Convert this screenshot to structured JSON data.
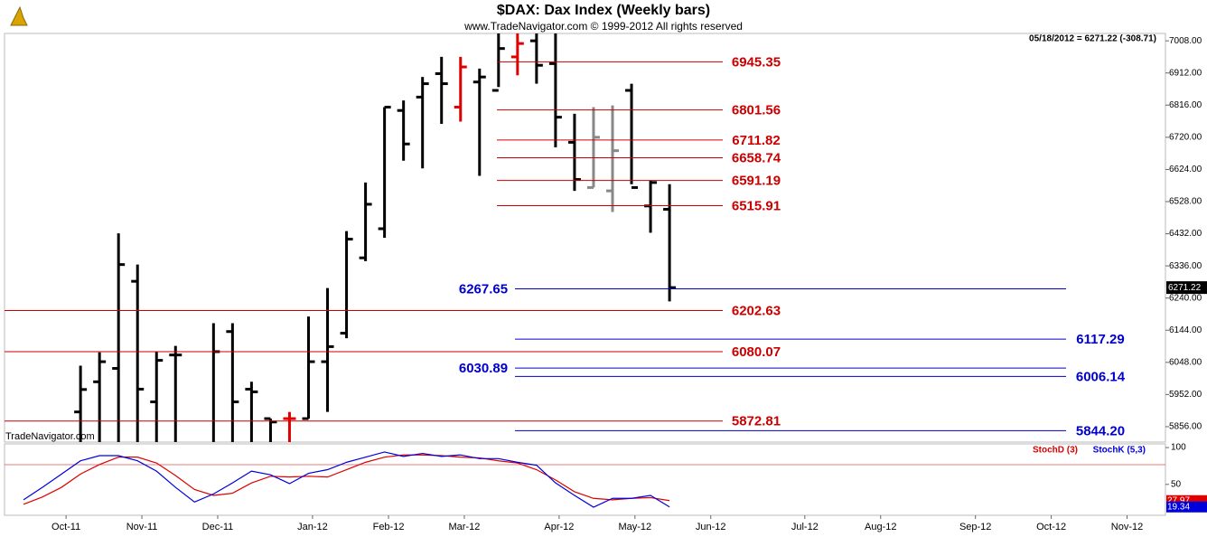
{
  "chart_data": {
    "type": "ohlc",
    "title": "$DAX:  Dax Index  (Weekly bars)",
    "subtitle": "www.TradeNavigator.com © 1999-2012 All rights reserved",
    "info": "05/18/2012 = 6271.22 (-308.71)",
    "watermark": "TradeNavigator.com",
    "x": [
      0,
      1,
      2,
      3,
      4,
      5,
      7,
      8,
      9,
      10,
      11,
      12,
      13,
      14,
      15,
      16,
      17,
      18,
      19,
      20,
      21,
      22,
      23,
      24,
      25,
      26,
      27,
      28,
      29,
      30,
      31
    ],
    "open": [
      5900,
      5990,
      6030,
      6290,
      5930,
      6070,
      5760,
      6140,
      5968,
      5880,
      5880,
      5880,
      6050,
      6135,
      6360,
      6447,
      6800,
      6840,
      6910,
      6810,
      6885,
      6860,
      6960,
      7008,
      6940,
      6705,
      6570,
      6560,
      6860,
      6515,
      6505
    ],
    "high": [
      6038,
      6078,
      6433,
      6340,
      6080,
      6097,
      6165,
      6165,
      5990,
      5880,
      5900,
      6185,
      6270,
      6440,
      6585,
      6810,
      6830,
      6900,
      6960,
      6960,
      6925,
      7040,
      7040,
      7040,
      7040,
      6790,
      6810,
      6815,
      6880,
      6590,
      6580
    ],
    "low": [
      5760,
      5760,
      5760,
      5760,
      5760,
      5760,
      5760,
      5760,
      5760,
      5760,
      5760,
      5880,
      5900,
      6120,
      6350,
      6420,
      6650,
      6627,
      6760,
      6767,
      6605,
      6870,
      6905,
      6880,
      6690,
      6560,
      6570,
      6497,
      6580,
      6435,
      6230
    ],
    "close": [
      5967,
      6050,
      6340,
      5968,
      6054,
      6070,
      6080,
      5930,
      5960,
      5870,
      5880,
      6050,
      6095,
      6416,
      6520,
      6810,
      6700,
      6880,
      6880,
      6930,
      6900,
      6985,
      7000,
      6935,
      6780,
      6594,
      6720,
      6680,
      6570,
      6585,
      6271.22
    ],
    "bar_colors": [
      "#000",
      "#000",
      "#000",
      "#000",
      "#000",
      "#000",
      "#000",
      "#000",
      "#000",
      "#000",
      "#e00000",
      "#000",
      "#000",
      "#000",
      "#000",
      "#000",
      "#000",
      "#000",
      "#000",
      "#e00000",
      "#000",
      "#000",
      "#e00000",
      "#000",
      "#000",
      "#000",
      "#888888",
      "#888888",
      "#000",
      "#000",
      "#000"
    ],
    "xlim": [
      -4,
      57.1
    ],
    "xticks": [
      {
        "value": -0.76,
        "label": "Oct-11"
      },
      {
        "value": 3.23,
        "label": "Nov-11"
      },
      {
        "value": 7.22,
        "label": "Dec-11"
      },
      {
        "value": 12.21,
        "label": "Jan-12"
      },
      {
        "value": 16.21,
        "label": "Feb-12"
      },
      {
        "value": 20.2,
        "label": "Mar-12"
      },
      {
        "value": 25.19,
        "label": "Apr-12"
      },
      {
        "value": 29.18,
        "label": "May-12"
      },
      {
        "value": 33.17,
        "label": "Jun-12"
      },
      {
        "value": 38.12,
        "label": "Jul-12"
      },
      {
        "value": 42.11,
        "label": "Aug-12"
      },
      {
        "value": 47.1,
        "label": "Sep-12"
      },
      {
        "value": 51.09,
        "label": "Oct-12"
      },
      {
        "value": 55.08,
        "label": "Nov-12"
      }
    ],
    "ylim": [
      5810,
      7030
    ],
    "yticks": [
      {
        "value": 7008,
        "label": "7008.00"
      },
      {
        "value": 6912,
        "label": "6912.00"
      },
      {
        "value": 6816,
        "label": "6816.00"
      },
      {
        "value": 6720,
        "label": "6720.00"
      },
      {
        "value": 6624,
        "label": "6624.00"
      },
      {
        "value": 6528,
        "label": "6528.00"
      },
      {
        "value": 6432,
        "label": "6432.00"
      },
      {
        "value": 6336,
        "label": "6336.00"
      },
      {
        "value": 6240,
        "label": "6240.00"
      },
      {
        "value": 6144,
        "label": "6144.00"
      },
      {
        "value": 6048,
        "label": "6048.00"
      },
      {
        "value": 5952,
        "label": "5952.00"
      },
      {
        "value": 5856,
        "label": "5856.00"
      }
    ],
    "levels": [
      {
        "value": 6945.35,
        "label": "6945.35",
        "color": "#cc0000",
        "label_side": "right"
      },
      {
        "value": 6801.56,
        "label": "6801.56",
        "color": "#cc0000",
        "label_side": "right"
      },
      {
        "value": 6711.82,
        "label": "6711.82",
        "color": "#cc0000",
        "label_side": "right"
      },
      {
        "value": 6658.74,
        "label": "6658.74",
        "color": "#cc0000",
        "label_side": "right"
      },
      {
        "value": 6591.19,
        "label": "6591.19",
        "color": "#cc0000",
        "label_side": "right"
      },
      {
        "value": 6515.91,
        "label": "6515.91",
        "color": "#cc0000",
        "label_side": "right"
      },
      {
        "value": 6202.63,
        "label": "6202.63",
        "color": "#cc0000",
        "label_side": "right"
      },
      {
        "value": 6080.07,
        "label": "6080.07",
        "color": "#cc0000",
        "label_side": "right"
      },
      {
        "value": 5872.81,
        "label": "5872.81",
        "color": "#cc0000",
        "label_side": "right"
      },
      {
        "value": 6267.65,
        "label": "6267.65",
        "color": "#0000cc",
        "label_side": "left"
      },
      {
        "value": 6117.29,
        "label": "6117.29",
        "color": "#0000cc",
        "label_side": "right"
      },
      {
        "value": 6030.89,
        "label": "6030.89",
        "color": "#0000cc",
        "label_side": "left"
      },
      {
        "value": 6006.14,
        "label": "6006.14",
        "color": "#0000cc",
        "label_side": "right"
      },
      {
        "value": 5844.2,
        "label": "5844.20",
        "color": "#0000cc",
        "label_side": "right"
      }
    ],
    "indicator": {
      "type": "line",
      "ylim": [
        8,
        105
      ],
      "yticks": [
        100,
        50
      ],
      "x": [
        -3,
        -2,
        -1,
        0,
        1,
        2,
        3,
        4,
        5,
        6,
        7,
        8,
        9,
        10,
        11,
        12,
        13,
        14,
        15,
        16,
        17,
        18,
        19,
        20,
        21,
        22,
        23,
        24,
        25,
        26,
        27,
        28,
        29,
        30,
        31
      ],
      "series": [
        {
          "name": "StochD (3)",
          "color": "#dd0000",
          "values": [
            23,
            33,
            46,
            64,
            77,
            87,
            87,
            79,
            62,
            43,
            35,
            38,
            52,
            61,
            60,
            61,
            60,
            70,
            80,
            87,
            90,
            90,
            89,
            87,
            86,
            82,
            79,
            70,
            56,
            40,
            31,
            29,
            31,
            32,
            27.97
          ]
        },
        {
          "name": "StochK (5,3)",
          "color": "#0000dd",
          "values": [
            29,
            46,
            64,
            82,
            89,
            89,
            82,
            68,
            46,
            26,
            37,
            52,
            68,
            63,
            51,
            65,
            70,
            80,
            87,
            94,
            88,
            92,
            88,
            90,
            85,
            85,
            80,
            76,
            52,
            35,
            19,
            31,
            31,
            35,
            19.34
          ]
        }
      ]
    }
  }
}
